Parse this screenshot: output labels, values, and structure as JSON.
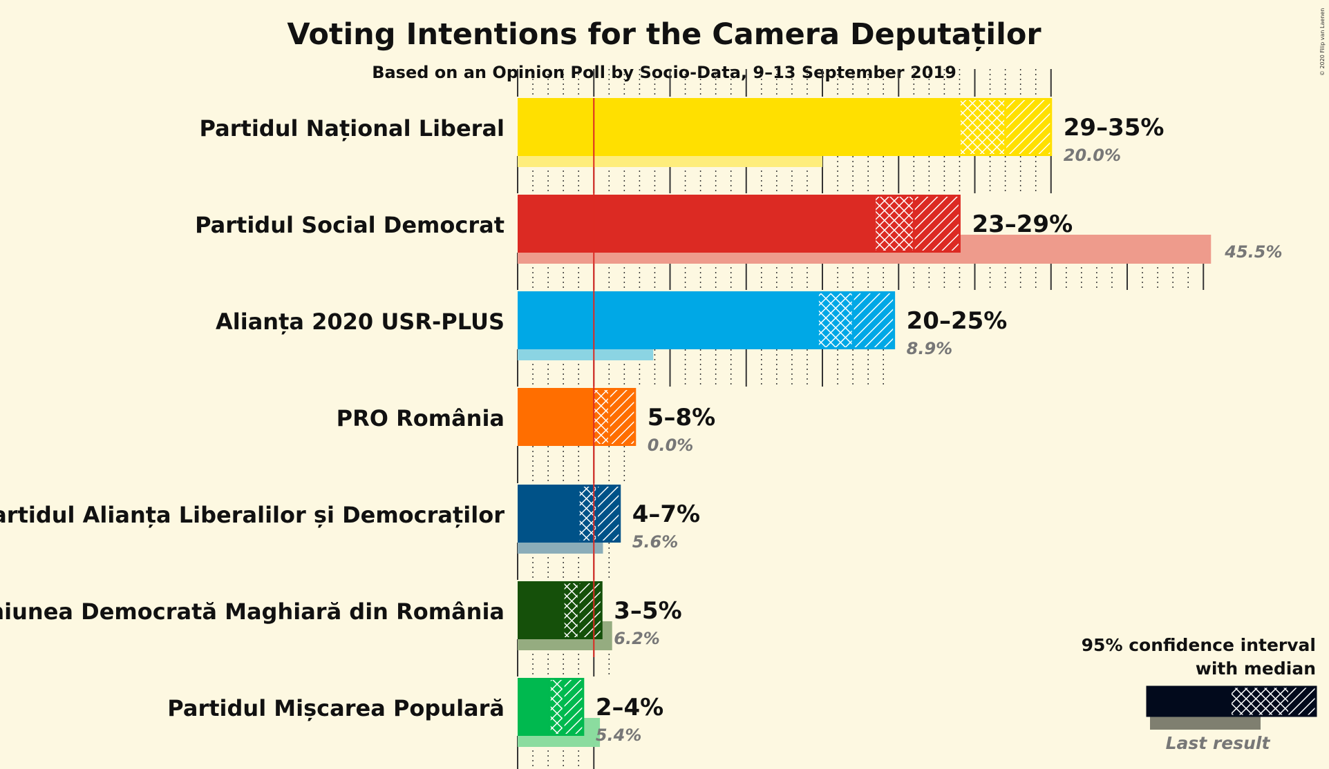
{
  "chart_data": {
    "type": "bar",
    "title": "Voting Intentions for the Camera Deputaților",
    "subtitle": "Based on an Opinion Poll by Socio-Data, 9–13 September 2019",
    "copyright": "© 2020 Filip van Laenen",
    "threshold": 5,
    "parties": [
      {
        "name": "Partidul Național Liberal",
        "color": "#ffe000",
        "ci80": [
          29,
          32
        ],
        "ci95": [
          29,
          35
        ],
        "median": 32,
        "label": "29–35%",
        "last_result": 20.0,
        "last_label": "20.0%"
      },
      {
        "name": "Partidul Social Democrat",
        "color": "#dc2a23",
        "ci80": [
          23.5,
          26
        ],
        "ci95": [
          23,
          29
        ],
        "median": 26,
        "label": "23–29%",
        "last_result": 45.5,
        "last_label": "45.5%"
      },
      {
        "name": "Alianța 2020 USR-PLUS",
        "color": "#00a8e6",
        "ci80": [
          19.7,
          22
        ],
        "ci95": [
          19.7,
          24.7
        ],
        "median": 22,
        "label": "20–25%",
        "last_result": 8.9,
        "last_label": "8.9%"
      },
      {
        "name": "PRO România",
        "color": "#ff6e00",
        "ci80": [
          4.9,
          6
        ],
        "ci95": [
          4.9,
          7.7
        ],
        "median": 6,
        "label": "5–8%",
        "last_result": 0.0,
        "last_label": "0.0%"
      },
      {
        "name": "Partidul Alianța Liberalilor și Democraților",
        "color": "#005288",
        "ci80": [
          4,
          5.2
        ],
        "ci95": [
          4,
          6.7
        ],
        "median": 5.2,
        "label": "4–7%",
        "last_result": 5.6,
        "last_label": "5.6%"
      },
      {
        "name": "Uniunea Democrată Maghiară din România",
        "color": "#15500a",
        "ci80": [
          3,
          4
        ],
        "ci95": [
          3,
          5.5
        ],
        "median": 4,
        "label": "3–5%",
        "last_result": 6.2,
        "last_label": "6.2%"
      },
      {
        "name": "Partidul Mișcarea Populară",
        "color": "#00b94f",
        "ci80": [
          2.1,
          3
        ],
        "ci95": [
          2.1,
          4.3
        ],
        "median": 3,
        "label": "2–4%",
        "last_result": 5.4,
        "last_label": "5.4%"
      }
    ]
  },
  "legend": {
    "line1": "95% confidence interval",
    "line2": "with median",
    "last": "Last result"
  }
}
